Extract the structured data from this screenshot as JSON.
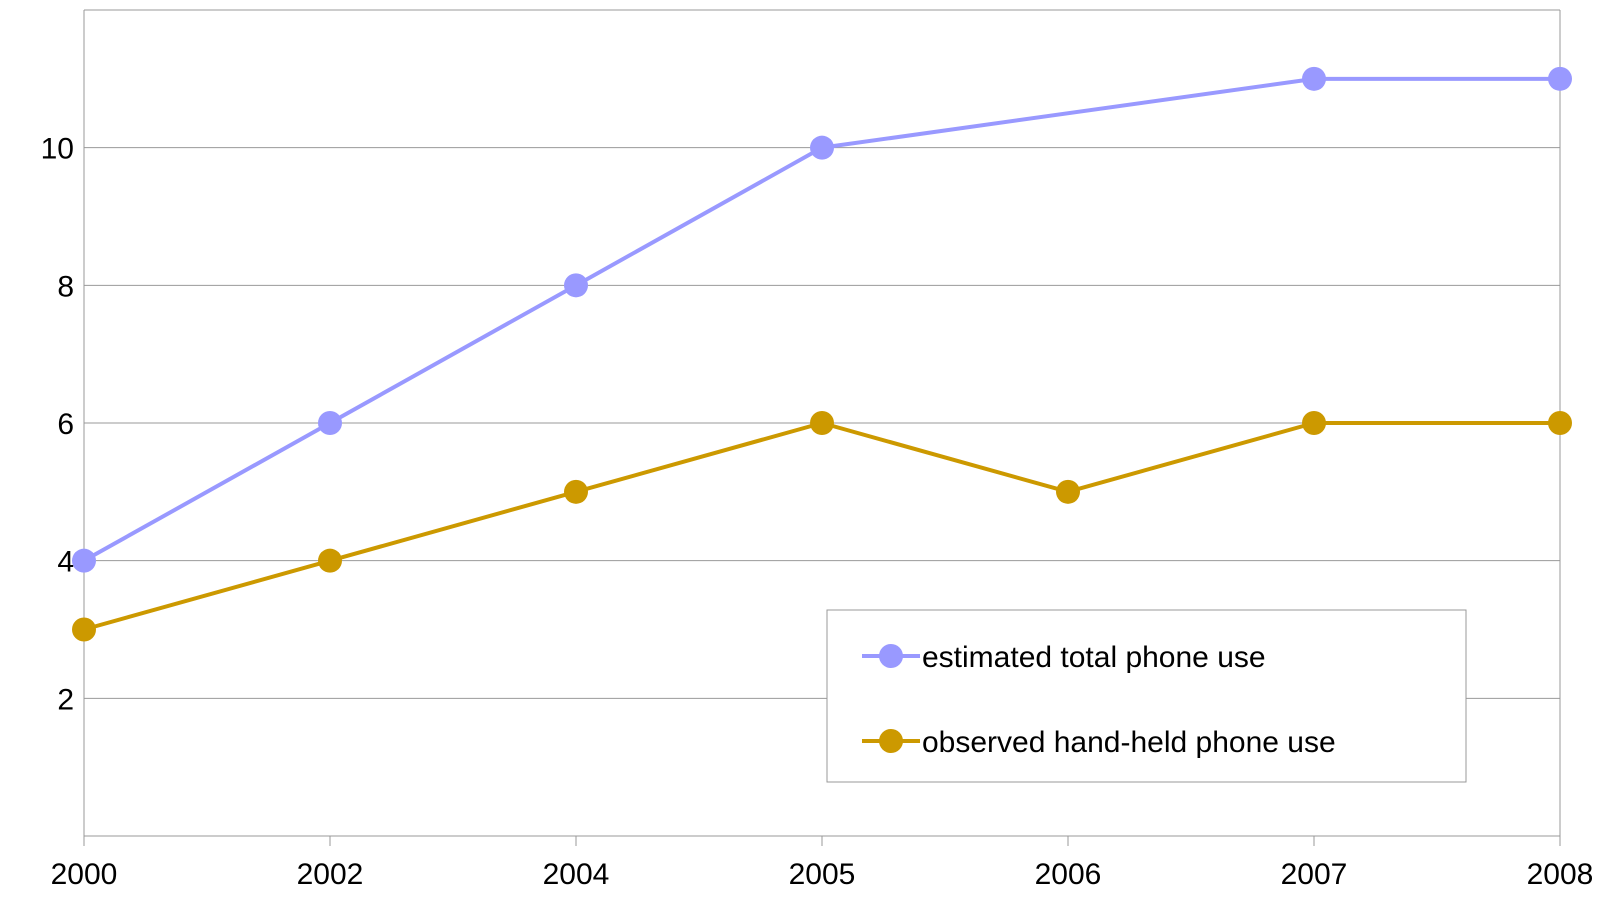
{
  "chart_data": {
    "type": "line",
    "categories": [
      "2000",
      "2002",
      "2004",
      "2005",
      "2006",
      "2007",
      "2008"
    ],
    "series": [
      {
        "name": "estimated total phone use",
        "color": "#9999ff",
        "values": [
          4,
          6,
          8,
          10,
          null,
          11,
          11
        ]
      },
      {
        "name": "observed hand-held phone use",
        "color": "#cc9900",
        "values": [
          3,
          4,
          5,
          6,
          5,
          6,
          6
        ]
      }
    ],
    "y_ticks": [
      2,
      4,
      6,
      8,
      10
    ],
    "ylim": [
      0,
      12
    ],
    "grid": true,
    "legend_position": "bottom-right"
  }
}
